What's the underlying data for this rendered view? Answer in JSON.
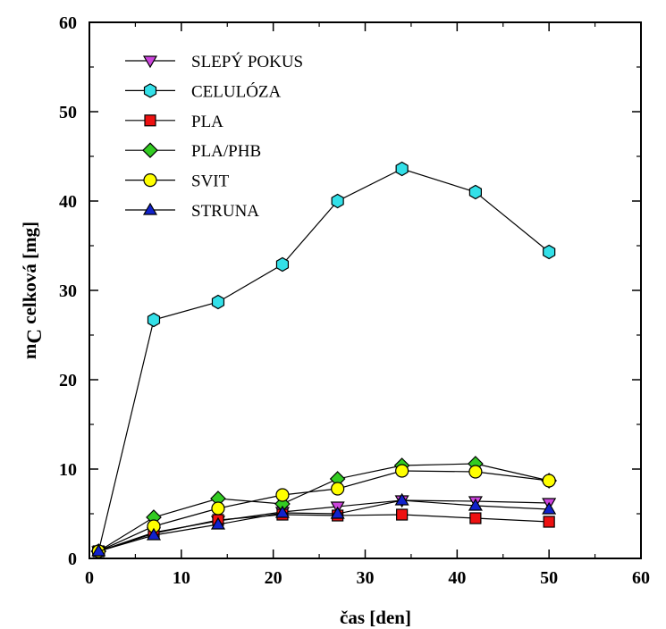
{
  "chart_data": {
    "type": "line",
    "xlabel": "čas [den]",
    "ylabel": {
      "main": "m",
      "sub": "C",
      "rest": " celková [mg]"
    },
    "xlim": [
      0,
      60
    ],
    "ylim": [
      0,
      60
    ],
    "xticks": [
      "0",
      "10",
      "20",
      "30",
      "40",
      "50",
      "60"
    ],
    "yticks": [
      "0",
      "10",
      "20",
      "30",
      "40",
      "50",
      "60"
    ],
    "grid": false,
    "legend_position": "top-left",
    "series": [
      {
        "name": "SLEPÝ POKUS",
        "color": "#cc44dd",
        "marker": "triangle-down",
        "x": [
          1,
          7,
          14,
          21,
          27,
          34,
          42,
          50
        ],
        "y": [
          0.8,
          2.9,
          4.2,
          5.2,
          5.8,
          6.5,
          6.4,
          6.2
        ]
      },
      {
        "name": "CELULÓZA",
        "color": "#33e0e8",
        "marker": "hexagon",
        "x": [
          1,
          7,
          14,
          21,
          27,
          34,
          42,
          50
        ],
        "y": [
          0.8,
          26.7,
          28.7,
          32.9,
          40.0,
          43.6,
          41.0,
          34.3
        ]
      },
      {
        "name": "PLA",
        "color": "#ee1111",
        "marker": "square",
        "x": [
          1,
          7,
          14,
          21,
          27,
          34,
          42,
          50
        ],
        "y": [
          0.8,
          2.8,
          4.3,
          4.9,
          4.8,
          4.9,
          4.5,
          4.1
        ]
      },
      {
        "name": "PLA/PHB",
        "color": "#33cc22",
        "marker": "diamond",
        "x": [
          1,
          7,
          14,
          21,
          27,
          34,
          42,
          50
        ],
        "y": [
          0.8,
          4.6,
          6.7,
          6.1,
          8.9,
          10.4,
          10.6,
          8.7
        ]
      },
      {
        "name": "SVIT",
        "color": "#ffff00",
        "marker": "circle",
        "x": [
          1,
          7,
          14,
          21,
          27,
          34,
          42,
          50
        ],
        "y": [
          0.8,
          3.6,
          5.6,
          7.1,
          7.8,
          9.8,
          9.7,
          8.7
        ]
      },
      {
        "name": "STRUNA",
        "color": "#1122cc",
        "marker": "triangle-up",
        "x": [
          1,
          7,
          14,
          21,
          27,
          34,
          42,
          50
        ],
        "y": [
          0.8,
          2.6,
          3.8,
          5.1,
          5.0,
          6.5,
          5.9,
          5.5
        ]
      }
    ]
  }
}
